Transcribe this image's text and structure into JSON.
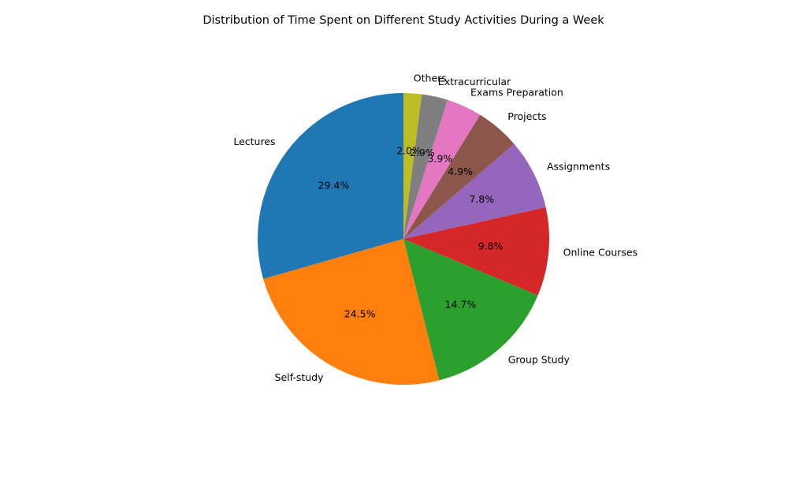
{
  "chart_data": {
    "type": "pie",
    "title": "Distribution of Time Spent on Different Study Activities During a Week",
    "categories": [
      "Lectures",
      "Self-study",
      "Group Study",
      "Online Courses",
      "Assignments",
      "Projects",
      "Exams Preparation",
      "Extracurricular",
      "Others"
    ],
    "values": [
      29.4,
      24.5,
      14.7,
      9.8,
      7.8,
      4.9,
      3.9,
      2.9,
      2.0
    ],
    "percent_labels": [
      "29.4%",
      "24.5%",
      "14.7%",
      "9.8%",
      "7.8%",
      "4.9%",
      "3.9%",
      "2.9%",
      "2.0%"
    ],
    "colors": [
      "#1f77b4",
      "#ff7f0e",
      "#2ca02c",
      "#d62728",
      "#9467bd",
      "#8c564b",
      "#e377c2",
      "#7f7f7f",
      "#bcbd22"
    ],
    "start_angle": "top",
    "direction": "counterclockwise",
    "legend": "none"
  }
}
